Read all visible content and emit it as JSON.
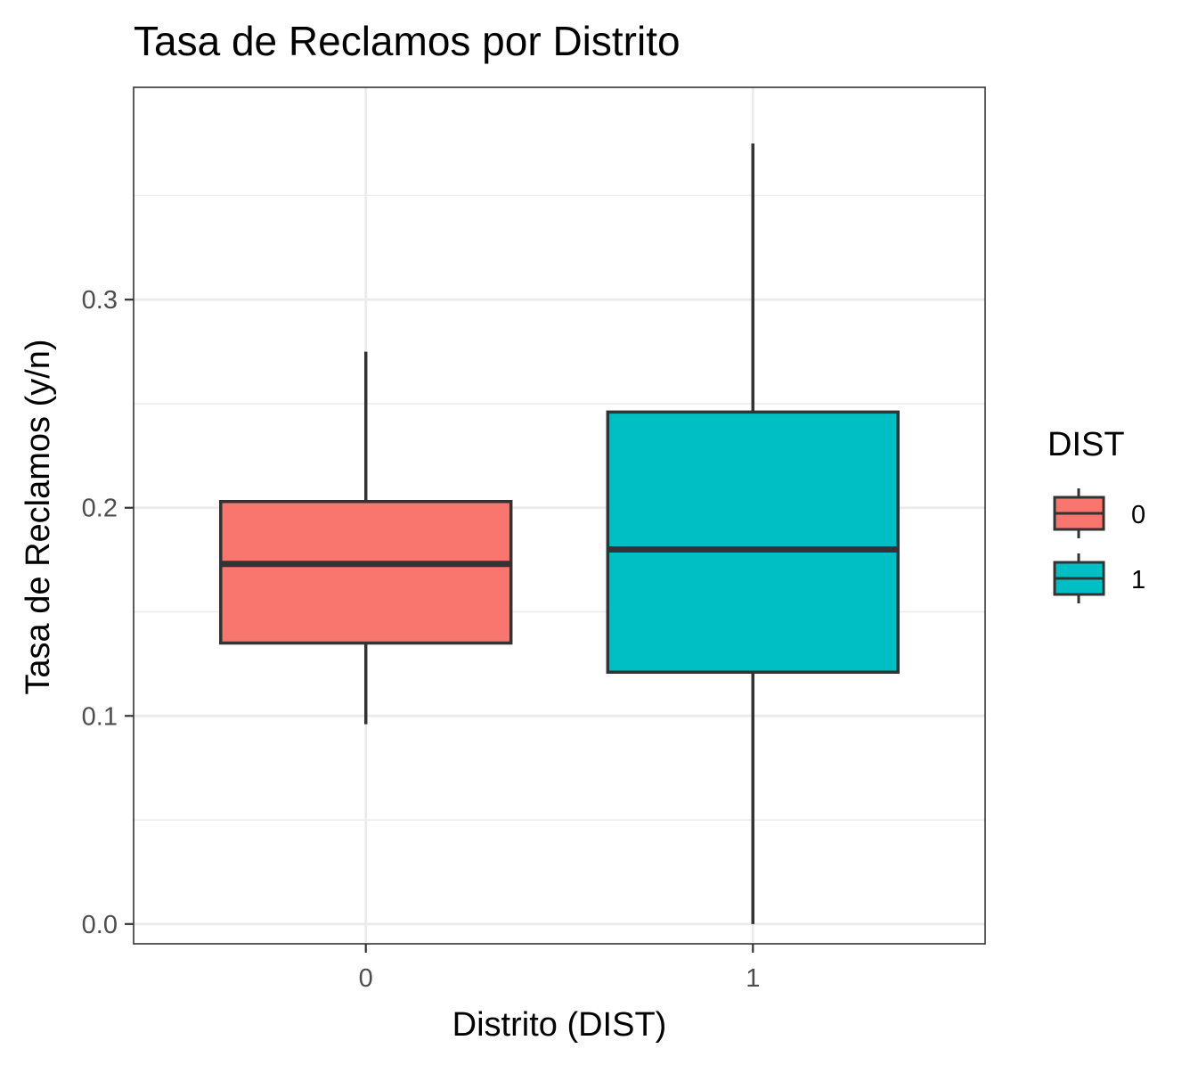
{
  "chart_data": {
    "type": "boxplot",
    "title": "Tasa de Reclamos por Distrito",
    "xlabel": "Distrito (DIST)",
    "ylabel": "Tasa de Reclamos (y/n)",
    "ylim": [
      -0.0095,
      0.402
    ],
    "y_ticks": [
      0.0,
      0.1,
      0.2,
      0.3
    ],
    "y_tick_labels": [
      "0.0",
      "0.1",
      "0.2",
      "0.3"
    ],
    "categories": [
      "0",
      "1"
    ],
    "grid": true,
    "legend_position": "right",
    "legend_title": "DIST",
    "series": [
      {
        "name": "0",
        "color": "#F8766D",
        "whisker_low": 0.096,
        "q1": 0.135,
        "median": 0.173,
        "q3": 0.203,
        "whisker_high": 0.275
      },
      {
        "name": "1",
        "color": "#00BFC4",
        "whisker_low": 0.0,
        "q1": 0.121,
        "median": 0.18,
        "q3": 0.246,
        "whisker_high": 0.375
      }
    ]
  }
}
